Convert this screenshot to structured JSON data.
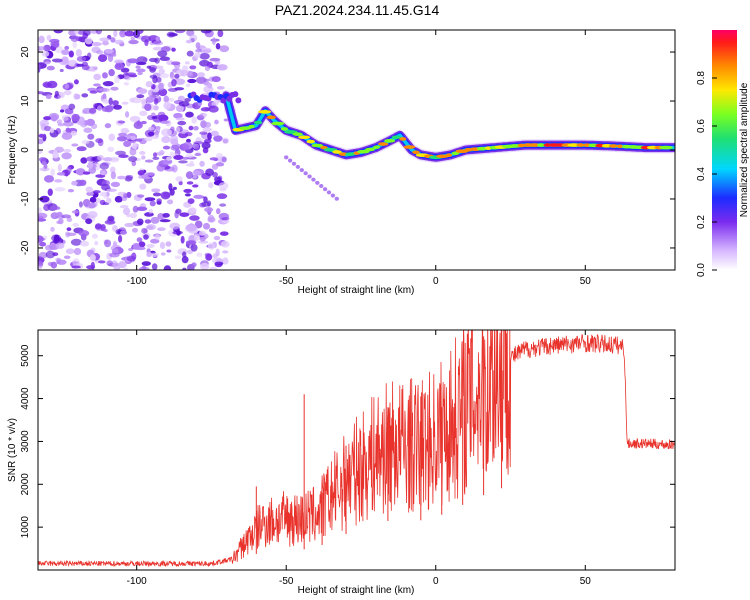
{
  "title": "PAZ1.2024.234.11.45.G14",
  "chart_data": [
    {
      "type": "heatmap",
      "xlabel": "Height of straight line (km)",
      "ylabel": "Frequency (Hz)",
      "xlim": [
        -133,
        80
      ],
      "ylim": [
        -24.5,
        24.5
      ],
      "x_ticks": [
        -100,
        -50,
        0,
        50
      ],
      "x_tick_labels": [
        "-100",
        "-50",
        "0",
        "50"
      ],
      "y_ticks": [
        -20,
        -10,
        0,
        10,
        20
      ],
      "y_tick_labels": [
        "-20",
        "-10",
        "0",
        "10",
        "20"
      ],
      "colorbar": {
        "label": "Normalized spectral amplitude",
        "range": [
          0,
          1
        ],
        "ticks": [
          0,
          0.2,
          0.4,
          0.6,
          0.8
        ],
        "tick_labels": [
          "0.0",
          "0.2",
          "0.4",
          "0.6",
          "0.8"
        ],
        "colormap": "rainbow"
      },
      "ridge": [
        {
          "x": -70,
          "y": 11
        },
        {
          "x": -67,
          "y": 4
        },
        {
          "x": -60,
          "y": 5
        },
        {
          "x": -57,
          "y": 8
        },
        {
          "x": -54,
          "y": 6
        },
        {
          "x": -50,
          "y": 4
        },
        {
          "x": -45,
          "y": 3
        },
        {
          "x": -40,
          "y": 1
        },
        {
          "x": -35,
          "y": 0
        },
        {
          "x": -30,
          "y": -1
        },
        {
          "x": -25,
          "y": -0.5
        },
        {
          "x": -20,
          "y": 0.5
        },
        {
          "x": -15,
          "y": 2
        },
        {
          "x": -12,
          "y": 3
        },
        {
          "x": -8,
          "y": 0
        },
        {
          "x": -5,
          "y": -1
        },
        {
          "x": 0,
          "y": -1.5
        },
        {
          "x": 5,
          "y": -1
        },
        {
          "x": 10,
          "y": 0
        },
        {
          "x": 20,
          "y": 0.5
        },
        {
          "x": 30,
          "y": 1
        },
        {
          "x": 40,
          "y": 1
        },
        {
          "x": 50,
          "y": 1
        },
        {
          "x": 60,
          "y": 0.8
        },
        {
          "x": 70,
          "y": 0.5
        },
        {
          "x": 80,
          "y": 0.5
        }
      ]
    },
    {
      "type": "line",
      "xlabel": "Height of straight line (km)",
      "ylabel": "SNR (10 * v/v)",
      "xlim": [
        -133,
        80
      ],
      "ylim": [
        0,
        5600
      ],
      "x_ticks": [
        -100,
        -50,
        0,
        50
      ],
      "x_tick_labels": [
        "-100",
        "-50",
        "0",
        "50"
      ],
      "y_ticks": [
        1000,
        2000,
        3000,
        4000,
        5000
      ],
      "y_tick_labels": [
        "1000",
        "2000",
        "3000",
        "4000",
        "5000"
      ],
      "series_color": "#e8322b",
      "envelope": [
        {
          "x": -133,
          "y": 150
        },
        {
          "x": -75,
          "y": 150
        },
        {
          "x": -68,
          "y": 250
        },
        {
          "x": -63,
          "y": 700
        },
        {
          "x": -58,
          "y": 1100
        },
        {
          "x": -50,
          "y": 1200
        },
        {
          "x": -44,
          "y": 1200
        },
        {
          "x": -40,
          "y": 1300
        },
        {
          "x": -35,
          "y": 1700
        },
        {
          "x": -30,
          "y": 2100
        },
        {
          "x": -25,
          "y": 2400
        },
        {
          "x": -20,
          "y": 2700
        },
        {
          "x": -15,
          "y": 2900
        },
        {
          "x": -10,
          "y": 2900
        },
        {
          "x": -5,
          "y": 2900
        },
        {
          "x": 0,
          "y": 3100
        },
        {
          "x": 5,
          "y": 3400
        },
        {
          "x": 10,
          "y": 3900
        },
        {
          "x": 15,
          "y": 4300
        },
        {
          "x": 20,
          "y": 4650
        },
        {
          "x": 25,
          "y": 4950
        },
        {
          "x": 30,
          "y": 5150
        },
        {
          "x": 40,
          "y": 5250
        },
        {
          "x": 50,
          "y": 5300
        },
        {
          "x": 60,
          "y": 5250
        },
        {
          "x": 63,
          "y": 5200
        },
        {
          "x": 64,
          "y": 2950
        },
        {
          "x": 70,
          "y": 2950
        },
        {
          "x": 80,
          "y": 2920
        }
      ],
      "spikes": [
        {
          "x": -44,
          "y": 4100
        },
        {
          "x": -60,
          "y": 1950
        },
        {
          "x": -38,
          "y": 1800
        },
        {
          "x": -30,
          "y": 2900
        },
        {
          "x": -16,
          "y": 3800
        },
        {
          "x": -5,
          "y": 4050
        },
        {
          "x": 2,
          "y": 3800
        },
        {
          "x": 9,
          "y": 4500
        },
        {
          "x": 16,
          "y": 5450
        },
        {
          "x": 22,
          "y": 5250
        }
      ]
    }
  ]
}
